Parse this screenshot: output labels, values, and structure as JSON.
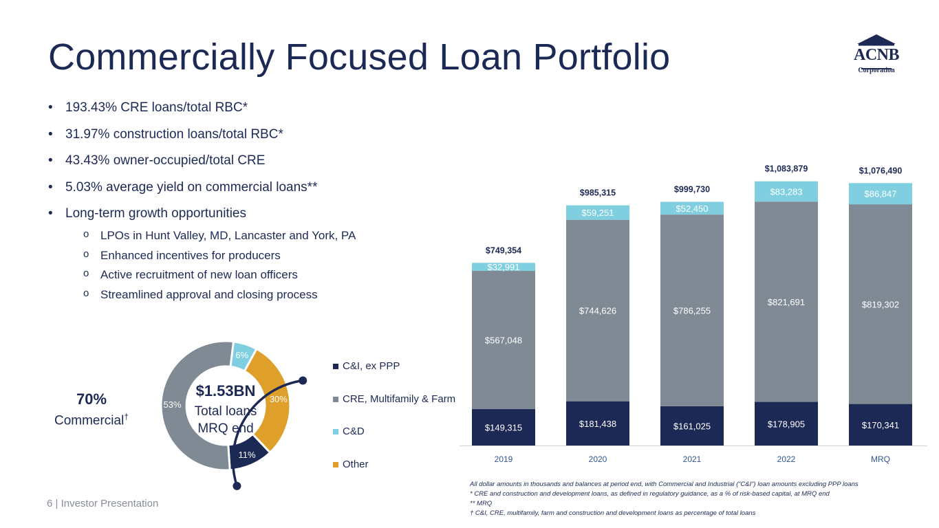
{
  "slide": {
    "title": "Commercially Focused Loan Portfolio",
    "logo_name": "ACNB",
    "logo_sub": "Corporation",
    "footer": "6  | Investor Presentation"
  },
  "bullets": [
    "193.43% CRE loans/total RBC*",
    "31.97% construction loans/total RBC*",
    "43.43% owner-occupied/total CRE",
    "5.03% average yield on commercial loans**",
    "Long-term growth opportunities"
  ],
  "sub_bullets": [
    "LPOs in Hunt Valley, MD, Lancaster and York, PA",
    "Enhanced incentives for producers",
    "Active recruitment of new loan officers",
    "Streamlined approval and closing process"
  ],
  "donut": {
    "center_value": "$1.53BN",
    "center_line1": "Total loans",
    "center_line2": "MRQ end",
    "commercial_pct": "70%",
    "commercial_label": "Commercial",
    "commercial_mark": "†"
  },
  "footnotes": [
    "All dollar amounts in thousands and balances at period end, with Commercial and Industrial (“C&I”) loan amounts excluding PPP loans",
    "* CRE and construction and development loans, as defined in regulatory guidance, as a % of risk-based capital, at MRQ end",
    "** MRQ",
    "† C&I, CRE, multifamily, farm and construction and development loans as percentage of total loans"
  ],
  "colors": {
    "navy": "#1c2955",
    "gray": "#7f8a94",
    "light_blue": "#7fcfe0",
    "gold": "#dfa02b",
    "axis_text": "#2f5597"
  },
  "chart_data": [
    {
      "type": "bar",
      "stacked": true,
      "categories": [
        "2019",
        "2020",
        "2021",
        "2022",
        "MRQ"
      ],
      "series": [
        {
          "color": "#1c2955",
          "values": [
            149315,
            181438,
            161025,
            178905,
            170341
          ],
          "labels": [
            "$149,315",
            "$181,438",
            "$161,025",
            "$178,905",
            "$170,341"
          ]
        },
        {
          "color": "#7f8a94",
          "values": [
            567048,
            744626,
            786255,
            821691,
            819302
          ],
          "labels": [
            "$567,048",
            "$744,626",
            "$786,255",
            "$821,691",
            "$819,302"
          ]
        },
        {
          "color": "#7fcfe0",
          "values": [
            32991,
            59251,
            52450,
            83283,
            86847
          ],
          "labels": [
            "$32,991",
            "$59,251",
            "$52,450",
            "$83,283",
            "$86,847"
          ]
        }
      ],
      "totals": [
        749354,
        985315,
        999730,
        1083879,
        1076490
      ],
      "total_labels": [
        "$749,354",
        "$985,315",
        "$999,730",
        "$1,083,879",
        "$1,076,490"
      ],
      "ylim": [
        0,
        1100000
      ]
    },
    {
      "type": "pie",
      "donut": true,
      "slices": [
        {
          "name": "C&I, ex PPP",
          "value": 11,
          "label": "11%",
          "color": "#1c2955"
        },
        {
          "name": "CRE, Multifamily & Farm",
          "value": 53,
          "label": "53%",
          "color": "#7f8a94"
        },
        {
          "name": "C&D",
          "value": 6,
          "label": "6%",
          "color": "#7fcfe0"
        },
        {
          "name": "Other",
          "value": 30,
          "label": "30%",
          "color": "#dfa02b"
        }
      ]
    }
  ]
}
